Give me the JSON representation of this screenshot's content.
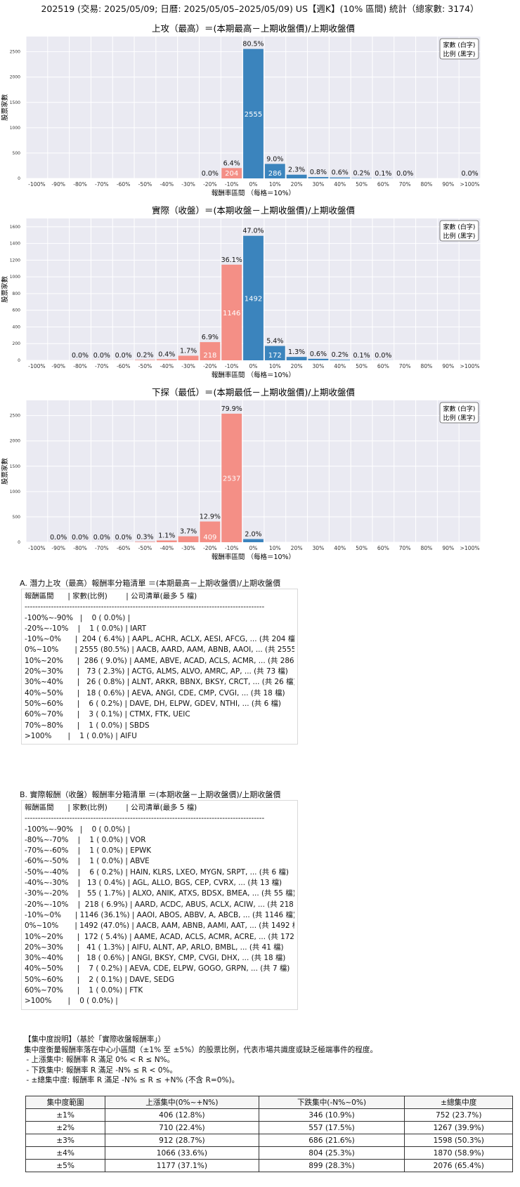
{
  "page": {
    "main_title": "202519 (交易: 2025/05/09; 日曆: 2025/05/05–2025/05/09) US【週K】(10% 區間) 統計（總家數: 3174）"
  },
  "legend": {
    "line1": "家數 (白字)",
    "line2": "比例 (黑字)"
  },
  "colors": {
    "up": "#3b84bd",
    "down": "#f48f86",
    "plot_bg": "#eaeaf2",
    "grid": "#ffffff"
  },
  "x_tick_labels": [
    "-100%",
    "-90%",
    "-80%",
    "-70%",
    "-60%",
    "-50%",
    "-40%",
    "-30%",
    "-20%",
    "-10%",
    "0%",
    "10%",
    "20%",
    "30%",
    "40%",
    "50%",
    "60%",
    "70%",
    "80%",
    "90%",
    ">100%"
  ],
  "chart_data": [
    {
      "type": "bar",
      "title": "上攻（最高）＝(本期最高－上期收盤價)/上期收盤價",
      "xlabel": "報酬率區間 （每格＝10%）",
      "ylabel": "股票家數",
      "ylim": [
        0,
        2800
      ],
      "yticks": [
        0,
        500,
        1000,
        1500,
        2000,
        2500
      ],
      "categories": [
        "-100%~-90%",
        "-90%~-80%",
        "-80%~-70%",
        "-70%~-60%",
        "-60%~-50%",
        "-50%~-40%",
        "-40%~-30%",
        "-30%~-20%",
        "-20%~-10%",
        "-10%~0%",
        "0%~10%",
        "10%~20%",
        "20%~30%",
        "30%~40%",
        "40%~50%",
        "50%~60%",
        "60%~70%",
        "70%~80%",
        "80%~90%",
        "90%~100%",
        ">100%"
      ],
      "values": [
        0,
        null,
        null,
        null,
        null,
        null,
        null,
        null,
        1,
        204,
        2555,
        286,
        73,
        26,
        18,
        6,
        3,
        1,
        null,
        null,
        1
      ],
      "pct_labels": [
        "",
        "",
        "",
        "",
        "",
        "",
        "",
        "",
        "0.0%",
        "6.4%",
        "80.5%",
        "9.0%",
        "2.3%",
        "0.8%",
        "0.6%",
        "0.2%",
        "0.1%",
        "0.0%",
        "",
        "",
        "0.0%"
      ],
      "count_labels": [
        "",
        "",
        "",
        "",
        "",
        "",
        "",
        "",
        "",
        "204",
        "2555",
        "286",
        "",
        "",
        "",
        "",
        "",
        "",
        "",
        "",
        ""
      ]
    },
    {
      "type": "bar",
      "title": "實際（收盤）＝(本期收盤－上期收盤價)/上期收盤價",
      "xlabel": "報酬率區間 （每格＝10%）",
      "ylabel": "股票家數",
      "ylim": [
        0,
        1700
      ],
      "yticks": [
        0,
        200,
        400,
        600,
        800,
        1000,
        1200,
        1400,
        1600
      ],
      "categories": [
        "-100%~-90%",
        "-90%~-80%",
        "-80%~-70%",
        "-70%~-60%",
        "-60%~-50%",
        "-50%~-40%",
        "-40%~-30%",
        "-30%~-20%",
        "-20%~-10%",
        "-10%~0%",
        "0%~10%",
        "10%~20%",
        "20%~30%",
        "30%~40%",
        "40%~50%",
        "50%~60%",
        "60%~70%",
        "70%~80%",
        "80%~90%",
        "90%~100%",
        ">100%"
      ],
      "values": [
        0,
        null,
        1,
        1,
        1,
        6,
        13,
        55,
        218,
        1146,
        1492,
        172,
        41,
        18,
        7,
        2,
        1,
        null,
        null,
        null,
        0
      ],
      "pct_labels": [
        "",
        "",
        "0.0%",
        "0.0%",
        "0.0%",
        "0.2%",
        "0.4%",
        "1.7%",
        "6.9%",
        "36.1%",
        "47.0%",
        "5.4%",
        "1.3%",
        "0.6%",
        "0.2%",
        "0.1%",
        "0.0%",
        "",
        "",
        "",
        ""
      ],
      "count_labels": [
        "",
        "",
        "",
        "",
        "",
        "",
        "",
        "",
        "218",
        "1146",
        "1492",
        "172",
        "",
        "",
        "",
        "",
        "",
        "",
        "",
        "",
        ""
      ]
    },
    {
      "type": "bar",
      "title": "下探（最低）＝(本期最低－上期收盤價)/上期收盤價",
      "xlabel": "報酬率區間 （每格＝10%）",
      "ylabel": "股票家數",
      "ylim": [
        0,
        2800
      ],
      "yticks": [
        0,
        500,
        1000,
        1500,
        2000,
        2500
      ],
      "categories": [
        "-100%~-90%",
        "-90%~-80%",
        "-80%~-70%",
        "-70%~-60%",
        "-60%~-50%",
        "-50%~-40%",
        "-40%~-30%",
        "-30%~-20%",
        "-20%~-10%",
        "-10%~0%",
        "0%~10%",
        "10%~20%",
        "20%~30%",
        "30%~40%",
        "40%~50%",
        "50%~60%",
        "60%~70%",
        "70%~80%",
        "80%~90%",
        "90%~100%",
        ">100%"
      ],
      "values": [
        null,
        1,
        1,
        1,
        1,
        10,
        35,
        117,
        409,
        2537,
        62,
        null,
        null,
        null,
        null,
        null,
        null,
        null,
        null,
        null,
        null
      ],
      "pct_labels": [
        "",
        "0.0%",
        "0.0%",
        "0.0%",
        "0.0%",
        "0.3%",
        "1.1%",
        "3.7%",
        "12.9%",
        "79.9%",
        "2.0%",
        "",
        "",
        "",
        "",
        "",
        "",
        "",
        "",
        "",
        ""
      ],
      "count_labels": [
        "",
        "",
        "",
        "",
        "",
        "",
        "",
        "",
        "409",
        "2537",
        "",
        "",
        "",
        "",
        "",
        "",
        "",
        "",
        "",
        "",
        ""
      ]
    }
  ],
  "list_a": {
    "title": "A. 潛力上攻（最高）報酬率分箱清單 ＝(本期最高－上期收盤價)/上期收盤價",
    "rows": [
      "報酬區間      | 家數(比例)        | 公司清單(最多 5 檔)",
      "-------------------------------------------------------------------------------------------",
      "-100%~-90%   |    0 ( 0.0%) |",
      "-20%~-10%    |    1 ( 0.0%) | IART",
      "-10%~0%      |  204 ( 6.4%) | AAPL, ACHR, ACLX, AESI, AFCG, ... (共 204 檔)",
      "0%~10%       | 2555 (80.5%) | AACB, AARD, AAM, ABNB, AAOI, ... (共 2555 檔)",
      "10%~20%      |  286 ( 9.0%) | AAME, ABVE, ACAD, ACLS, ACMR, ... (共 286 檔)",
      "20%~30%      |   73 ( 2.3%) | ACTG, ALMS, ALVO, AMRC, AP, ... (共 73 檔)",
      "30%~40%      |   26 ( 0.8%) | ALNT, ARKR, BBNX, BKSY, CRCT, ... (共 26 檔)",
      "40%~50%      |   18 ( 0.6%) | AEVA, ANGI, CDE, CMP, CVGI, ... (共 18 檔)",
      "50%~60%      |    6 ( 0.2%) | DAVE, DH, ELPW, GDEV, NTHI, ... (共 6 檔)",
      "60%~70%      |    3 ( 0.1%) | CTMX, FTK, UEIC",
      "70%~80%      |    1 ( 0.0%) | SBDS",
      ">100%       |    1 ( 0.0%) | AIFU"
    ]
  },
  "list_b": {
    "title": "B. 實際報酬（收盤）報酬率分箱清單 ＝(本期收盤－上期收盤價)/上期收盤價",
    "rows": [
      "報酬區間      | 家數(比例)        | 公司清單(最多 5 檔)",
      "-------------------------------------------------------------------------------------------",
      "-100%~-90%   |    0 ( 0.0%) |",
      "-80%~-70%    |    1 ( 0.0%) | VOR",
      "-70%~-60%    |    1 ( 0.0%) | EPWK",
      "-60%~-50%    |    1 ( 0.0%) | ABVE",
      "-50%~-40%    |    6 ( 0.2%) | HAIN, KLRS, LXEO, MYGN, SRPT, ... (共 6 檔)",
      "-40%~-30%    |   13 ( 0.4%) | AGL, ALLO, BGS, CEP, CVRX, ... (共 13 檔)",
      "-30%~-20%    |   55 ( 1.7%) | ALXO, ANIK, ATXS, BDSX, BMEA, ... (共 55 檔)",
      "-20%~-10%    |  218 ( 6.9%) | AARD, ACDC, ABUS, ACLX, ACIW, ... (共 218 檔)",
      "-10%~0%      | 1146 (36.1%) | AAOI, ABOS, ABBV, A, ABCB, ... (共 1146 檔)",
      "0%~10%       | 1492 (47.0%) | AACB, AAM, ABNB, AAMI, AAT, ... (共 1492 檔)",
      "10%~20%      |  172 ( 5.4%) | AAME, ACAD, ACLS, ACMR, ACRE, ... (共 172 檔)",
      "20%~30%      |   41 ( 1.3%) | AIFU, ALNT, AP, ARLO, BMBL, ... (共 41 檔)",
      "30%~40%      |   18 ( 0.6%) | ANGI, BKSY, CMP, CVGI, DHX, ... (共 18 檔)",
      "40%~50%      |    7 ( 0.2%) | AEVA, CDE, ELPW, GOGO, GRPN, ... (共 7 檔)",
      "50%~60%      |    2 ( 0.1%) | DAVE, SEDG",
      "60%~70%      |    1 ( 0.0%) | FTK",
      ">100%       |    0 ( 0.0%) |"
    ]
  },
  "concentration": {
    "notes": [
      "【集中度說明】（基於「實際收盤報酬率」）",
      "集中度衡量報酬率落在中心小區間（±1% 至 ±5%）的股票比例，代表市場共識度或缺乏極端事件的程度。",
      " - 上漲集中: 報酬率 R 滿足 0% < R ≤ N%。",
      " - 下跌集中: 報酬率 R 滿足 -N% ≤ R < 0%。",
      " - ±總集中度: 報酬率 R 滿足 -N% ≤ R ≤ +N% (不含 R=0%)。"
    ],
    "headers": [
      "集中度範圍",
      "上漲集中(0%~+N%)",
      "下跌集中(-N%~0%)",
      "±總集中度"
    ],
    "rows": [
      [
        "±1%",
        "406 (12.8%)",
        "346 (10.9%)",
        "752 (23.7%)"
      ],
      [
        "±2%",
        "710 (22.4%)",
        "557 (17.5%)",
        "1267 (39.9%)"
      ],
      [
        "±3%",
        "912 (28.7%)",
        "686 (21.6%)",
        "1598 (50.3%)"
      ],
      [
        "±4%",
        "1066 (33.6%)",
        "804 (25.3%)",
        "1870 (58.9%)"
      ],
      [
        "±5%",
        "1177 (37.1%)",
        "899 (28.3%)",
        "2076 (65.4%)"
      ]
    ]
  }
}
